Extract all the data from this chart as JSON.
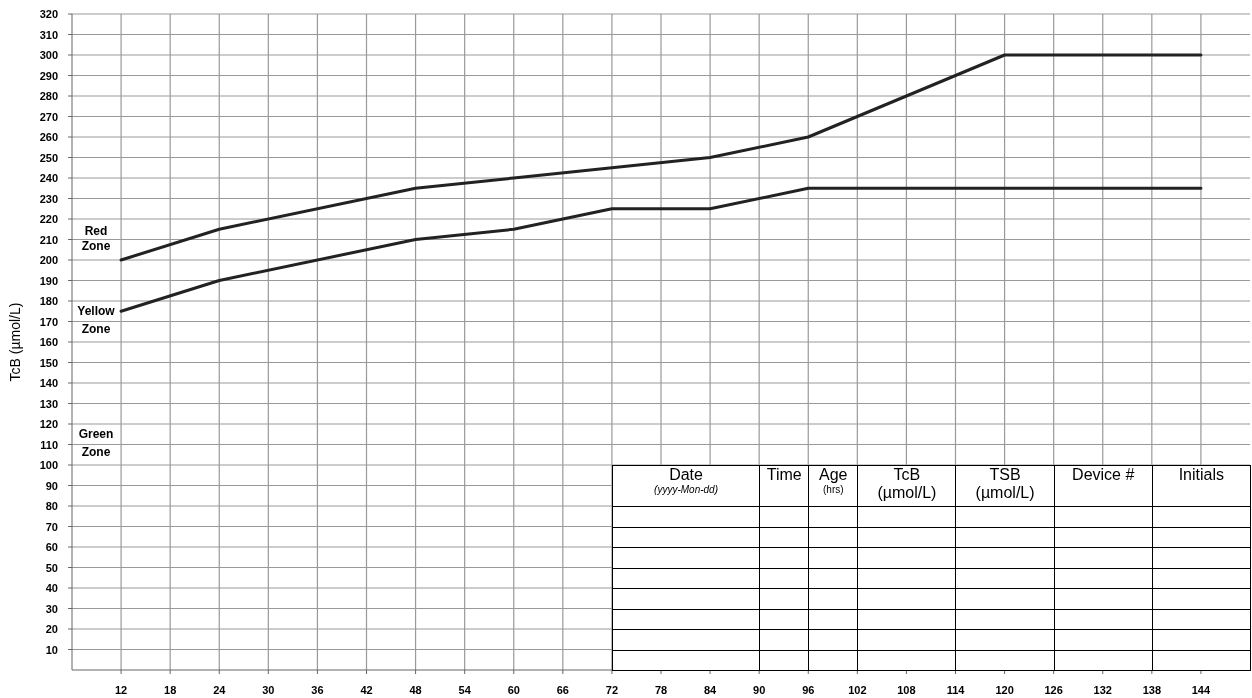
{
  "chart_data": {
    "type": "line",
    "ylabel": "TcB (µmol/L)",
    "series": [
      {
        "color": "#222222",
        "x": [
          12,
          24,
          48,
          60,
          72,
          84,
          96,
          120,
          144
        ],
        "values": [
          200,
          215,
          235,
          240,
          245,
          250,
          260,
          300,
          300
        ]
      },
      {
        "color": "#222222",
        "x": [
          12,
          24,
          48,
          60,
          72,
          84,
          96,
          144
        ],
        "values": [
          175,
          190,
          210,
          215,
          225,
          225,
          235,
          235
        ]
      }
    ],
    "xlim": [
      6,
      150
    ],
    "xticks": [
      12,
      18,
      24,
      30,
      36,
      42,
      48,
      54,
      60,
      66,
      72,
      78,
      84,
      90,
      96,
      102,
      108,
      114,
      120,
      126,
      132,
      138,
      144
    ],
    "ylim": [
      0,
      320
    ],
    "yticks": [
      10,
      20,
      30,
      40,
      50,
      60,
      70,
      80,
      90,
      100,
      110,
      120,
      130,
      140,
      150,
      160,
      170,
      180,
      190,
      200,
      210,
      220,
      230,
      240,
      250,
      260,
      270,
      280,
      290,
      300,
      310,
      320
    ],
    "grid": true,
    "marker": "none",
    "line_style": "solid",
    "annotations": [
      "Red\nZone",
      "Yellow\nZone",
      "Green\nZone",
      "Date\n(yyyy-Mon-dd)",
      "Time",
      "Age\n(hrs)",
      "TcB\n(µmol/L)",
      "TSB\n(µmol/L)",
      "Device #",
      "Initials"
    ]
  }
}
